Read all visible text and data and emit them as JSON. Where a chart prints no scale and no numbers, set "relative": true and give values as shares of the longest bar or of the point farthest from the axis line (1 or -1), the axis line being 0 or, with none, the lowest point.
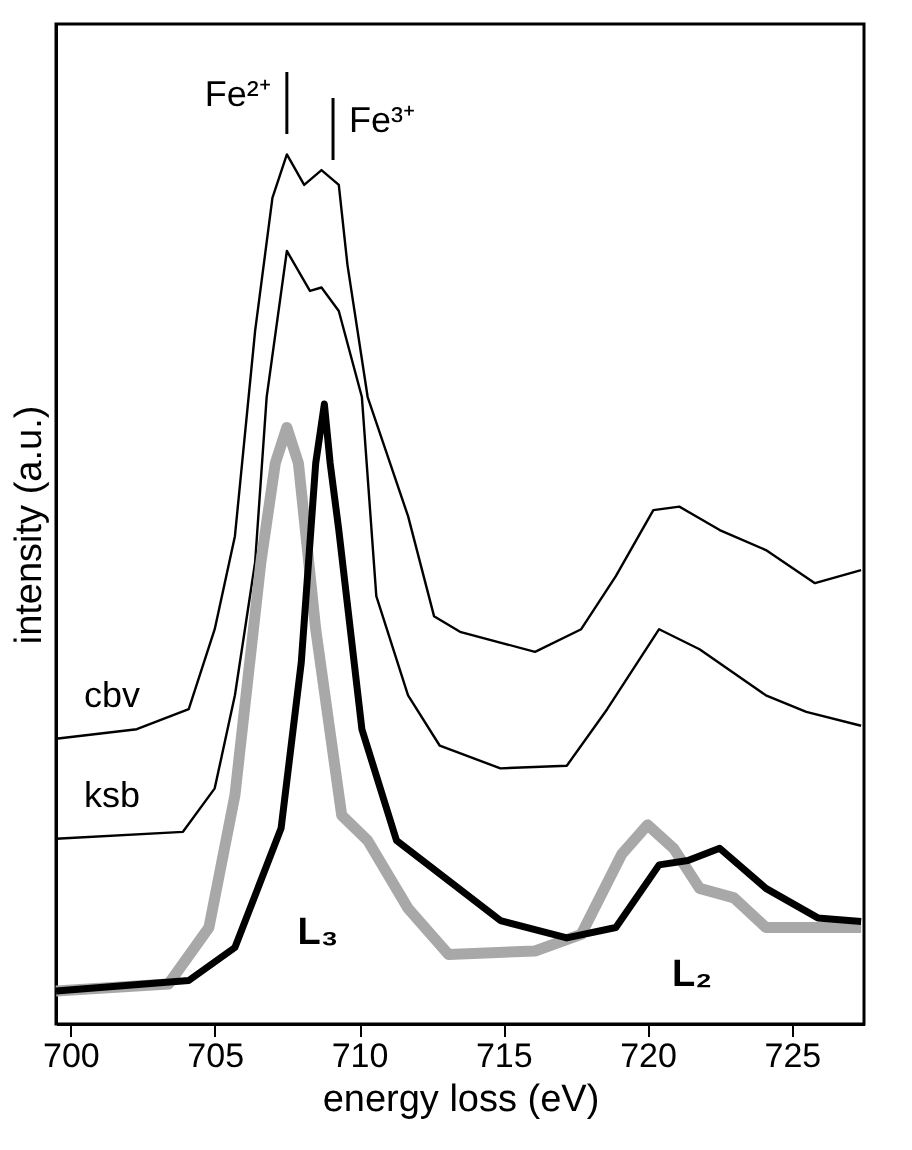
{
  "chart_data": {
    "type": "line",
    "relative": true,
    "xlabel": "energy loss (eV)",
    "ylabel": "intensity (a.u.)",
    "xlim": [
      699.5,
      727.5
    ],
    "xticks": [
      700,
      705,
      710,
      715,
      720,
      725
    ],
    "grid": false,
    "marker": "none",
    "line_style": "solid",
    "series": [
      {
        "name": "cbv",
        "color": "#000000",
        "x": [
          699.5,
          702.3,
          704.1,
          705.0,
          705.7,
          706.4,
          707.0,
          707.5,
          708.1,
          708.7,
          709.3,
          709.6,
          710.3,
          711.7,
          712.6,
          713.5,
          716.1,
          717.7,
          718.9,
          720.2,
          721.1,
          722.5,
          724.1,
          725.8,
          727.4
        ],
        "values": [
          0.328,
          0.339,
          0.362,
          0.454,
          0.561,
          0.797,
          0.95,
          1.0,
          0.965,
          0.982,
          0.965,
          0.873,
          0.721,
          0.584,
          0.469,
          0.451,
          0.428,
          0.454,
          0.515,
          0.591,
          0.595,
          0.568,
          0.545,
          0.507,
          0.522
        ]
      },
      {
        "name": "ksb",
        "color": "#000000",
        "x": [
          699.5,
          703.9,
          705.0,
          705.7,
          706.4,
          706.8,
          707.5,
          708.3,
          708.7,
          709.3,
          710.1,
          710.6,
          711.7,
          712.8,
          714.9,
          717.2,
          718.6,
          720.4,
          721.8,
          724.1,
          725.5,
          727.4
        ],
        "values": [
          0.213,
          0.221,
          0.271,
          0.378,
          0.531,
          0.721,
          0.889,
          0.843,
          0.847,
          0.82,
          0.721,
          0.492,
          0.378,
          0.32,
          0.294,
          0.297,
          0.362,
          0.454,
          0.431,
          0.378,
          0.359,
          0.343
        ]
      },
      {
        "color": "#a8a8a8",
        "x": [
          699.5,
          703.4,
          704.8,
          705.7,
          706.6,
          707.1,
          707.5,
          707.9,
          708.5,
          709.4,
          710.3,
          711.7,
          713.1,
          716.1,
          717.7,
          719.1,
          720.0,
          720.9,
          721.8,
          723.0,
          724.1,
          727.4
        ],
        "values": [
          0.038,
          0.046,
          0.111,
          0.263,
          0.531,
          0.645,
          0.686,
          0.645,
          0.454,
          0.24,
          0.211,
          0.133,
          0.08,
          0.084,
          0.103,
          0.195,
          0.229,
          0.202,
          0.156,
          0.145,
          0.111,
          0.111
        ]
      },
      {
        "color": "#000000",
        "x": [
          699.5,
          704.1,
          705.7,
          707.3,
          708.0,
          708.5,
          708.8,
          709.0,
          709.3,
          710.1,
          711.3,
          713.1,
          714.9,
          717.2,
          718.9,
          720.4,
          721.4,
          722.5,
          724.1,
          725.9,
          727.4
        ],
        "values": [
          0.038,
          0.05,
          0.088,
          0.225,
          0.416,
          0.645,
          0.713,
          0.645,
          0.568,
          0.339,
          0.211,
          0.165,
          0.119,
          0.099,
          0.111,
          0.183,
          0.188,
          0.202,
          0.156,
          0.122,
          0.118
        ]
      }
    ],
    "ref_lines": [
      {
        "axis": "x",
        "value": 707.5,
        "label": "Fe²⁺"
      },
      {
        "axis": "x",
        "value": 709.1,
        "label": "Fe³⁺"
      }
    ],
    "annotations": [
      "L₃",
      "L₂"
    ]
  }
}
